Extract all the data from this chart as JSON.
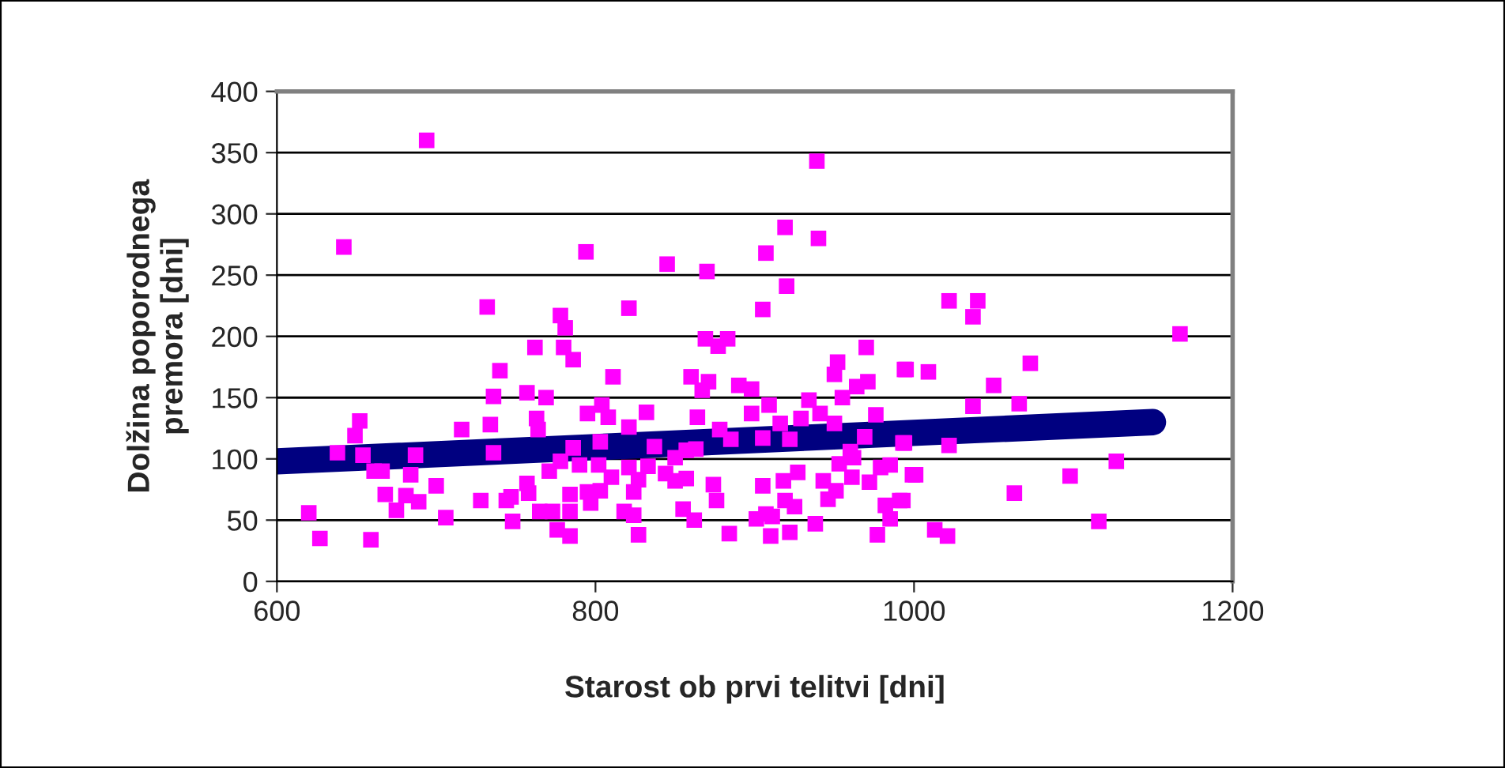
{
  "chart_data": {
    "type": "scatter",
    "xlabel": "Starost ob prvi telitvi [dni]",
    "ylabel": "Dolžina poporodnega\npremora [dni]",
    "xlim": [
      600,
      1200
    ],
    "xticks": [
      600,
      800,
      1000,
      1200
    ],
    "ylim": [
      0,
      400
    ],
    "yticks": [
      0,
      50,
      100,
      150,
      200,
      250,
      300,
      350,
      400
    ],
    "grid": "y",
    "legend": false,
    "series": [
      {
        "marker": "square",
        "color": "#ff00ff",
        "x": [
          694,
          642,
          794,
          732,
          778,
          781,
          762,
          780,
          786,
          740,
          736,
          757,
          769,
          652,
          649,
          716,
          734,
          763,
          764,
          795,
          638,
          654,
          687,
          736,
          786,
          661,
          666,
          684,
          771,
          778,
          790,
          700,
          668,
          681,
          689,
          675,
          728,
          744,
          747,
          757,
          758,
          784,
          795,
          620,
          706,
          765,
          773,
          784,
          748,
          776,
          784,
          627,
          659,
          939,
          919,
          940,
          907,
          845,
          870,
          920,
          821,
          905,
          869,
          877,
          883,
          970,
          952,
          950,
          994,
          811,
          860,
          871,
          867,
          890,
          898,
          971,
          964,
          955,
          934,
          804,
          808,
          832,
          864,
          909,
          898,
          929,
          941,
          976,
          950,
          821,
          878,
          916,
          803,
          837,
          885,
          905,
          922,
          969,
          993,
          863,
          857,
          850,
          960,
          962,
          953,
          802,
          821,
          833,
          844,
          810,
          827,
          850,
          857,
          874,
          905,
          918,
          927,
          943,
          961,
          972,
          979,
          985,
          999,
          803,
          824,
          951,
          876,
          919,
          946,
          797,
          818,
          824,
          855,
          862,
          925,
          982,
          991,
          901,
          907,
          911,
          985,
          938,
          827,
          884,
          910,
          922,
          977,
          1022,
          1040,
          1037,
          1167,
          995,
          1009,
          1073,
          1050,
          1037,
          1066,
          994,
          1022,
          1001,
          1127,
          1098,
          1063,
          993,
          1013,
          1021,
          1116
        ],
        "values": [
          360,
          273,
          269,
          224,
          217,
          207,
          191,
          191,
          181,
          172,
          151,
          154,
          150,
          131,
          119,
          124,
          128,
          133,
          124,
          137,
          105,
          103,
          103,
          105,
          109,
          90,
          90,
          87,
          90,
          98,
          95,
          78,
          71,
          70,
          65,
          58,
          66,
          66,
          69,
          80,
          72,
          71,
          73,
          56,
          52,
          57,
          57,
          57,
          49,
          42,
          37,
          35,
          34,
          343,
          289,
          280,
          268,
          259,
          253,
          241,
          223,
          222,
          198,
          192,
          198,
          191,
          179,
          169,
          173,
          167,
          167,
          163,
          156,
          160,
          157,
          163,
          159,
          150,
          148,
          144,
          134,
          138,
          134,
          144,
          137,
          133,
          137,
          136,
          129,
          126,
          124,
          129,
          114,
          110,
          116,
          117,
          116,
          118,
          113,
          108,
          107,
          101,
          106,
          101,
          96,
          95,
          93,
          94,
          88,
          85,
          83,
          82,
          84,
          79,
          78,
          82,
          89,
          82,
          85,
          81,
          93,
          95,
          87,
          74,
          73,
          74,
          66,
          66,
          67,
          64,
          57,
          54,
          59,
          50,
          61,
          62,
          66,
          51,
          55,
          53,
          51,
          47,
          38,
          39,
          37,
          40,
          38,
          229,
          229,
          216,
          202,
          173,
          171,
          178,
          160,
          143,
          145,
          113,
          111,
          87,
          98,
          86,
          72,
          66,
          42,
          37,
          49
        ]
      },
      {
        "type": "line",
        "marker": "none",
        "line_style": "solid",
        "color": "#000080",
        "x": [
          600,
          1150
        ],
        "values": [
          98,
          130
        ]
      }
    ]
  }
}
